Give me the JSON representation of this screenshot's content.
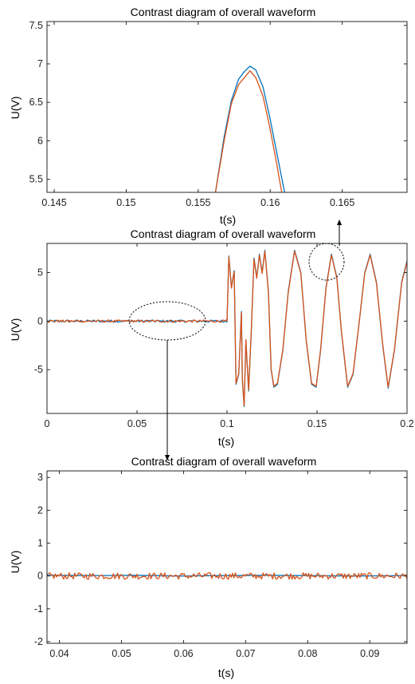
{
  "colors": {
    "series_a": "#0072BD",
    "series_b": "#D95319"
  },
  "chart_data": [
    {
      "type": "line",
      "title": "Contrast diagram of overall waveform",
      "xlabel": "t(s)",
      "ylabel": "U(V)",
      "xlim": [
        0.1445,
        0.1695
      ],
      "ylim": [
        5.33,
        7.55
      ],
      "xticks": [
        0.145,
        0.15,
        0.155,
        0.16,
        0.165
      ],
      "yticks": [
        5.5,
        6,
        6.5,
        7,
        7.5
      ],
      "grid": false,
      "series": [
        {
          "color": "#0072BD",
          "x": [
            0.1562,
            0.1568,
            0.1573,
            0.1578,
            0.1582,
            0.1586,
            0.159,
            0.1595,
            0.16,
            0.1605,
            0.161
          ],
          "y": [
            5.33,
            6.05,
            6.52,
            6.8,
            6.9,
            6.97,
            6.92,
            6.7,
            6.28,
            5.8,
            5.33
          ]
        },
        {
          "color": "#D95319",
          "x": [
            0.1562,
            0.1568,
            0.1573,
            0.1578,
            0.1582,
            0.1586,
            0.159,
            0.1595,
            0.16,
            0.1604,
            0.1608
          ],
          "y": [
            5.33,
            6.0,
            6.48,
            6.73,
            6.82,
            6.91,
            6.82,
            6.58,
            6.15,
            5.75,
            5.33
          ]
        }
      ]
    },
    {
      "type": "line",
      "title": "Contrast diagram of overall waveform",
      "xlabel": "t(s)",
      "ylabel": "U(V)",
      "xlim": [
        0,
        0.2
      ],
      "ylim": [
        -9.5,
        8
      ],
      "xticks": [
        0,
        0.05,
        0.1,
        0.15,
        0.2
      ],
      "yticks": [
        -5,
        0,
        5
      ],
      "grid": false,
      "series": [
        {
          "color": "#0072BD",
          "x": [
            0,
            0.1,
            0.101,
            0.1025,
            0.104,
            0.105,
            0.1065,
            0.108,
            0.1085,
            0.1095,
            0.1105,
            0.112,
            0.1135,
            0.115,
            0.1165,
            0.118,
            0.1195,
            0.121,
            0.123,
            0.1245,
            0.126,
            0.128,
            0.131,
            0.134,
            0.1375,
            0.141,
            0.144,
            0.147,
            0.1495,
            0.152,
            0.155,
            0.158,
            0.161,
            0.1635,
            0.167,
            0.17,
            0.1735,
            0.1765,
            0.1795,
            0.183,
            0.1865,
            0.1895,
            0.193,
            0.197,
            0.2
          ],
          "y": [
            0,
            0,
            6.7,
            3.5,
            5.2,
            -6.5,
            -5.5,
            1.0,
            -6.0,
            -8.8,
            -2.0,
            -7.2,
            -1.0,
            6.5,
            4.5,
            6.9,
            5.0,
            7.3,
            3.0,
            -5.0,
            -6.8,
            -6.5,
            -3.0,
            3.0,
            7.3,
            5.0,
            -2.0,
            -6.5,
            -6.8,
            -3.0,
            3.5,
            6.9,
            4.5,
            -1.0,
            -6.8,
            -5.5,
            0,
            5.0,
            6.9,
            4.0,
            -2.5,
            -6.9,
            -3.0,
            4.0,
            6.2
          ]
        },
        {
          "color": "#D95319",
          "x": [
            0,
            0.1,
            0.101,
            0.1025,
            0.104,
            0.105,
            0.1065,
            0.108,
            0.1085,
            0.1095,
            0.1105,
            0.112,
            0.1135,
            0.115,
            0.1165,
            0.118,
            0.1195,
            0.121,
            0.123,
            0.1245,
            0.126,
            0.128,
            0.131,
            0.134,
            0.1375,
            0.141,
            0.144,
            0.147,
            0.1495,
            0.152,
            0.155,
            0.158,
            0.161,
            0.1635,
            0.167,
            0.17,
            0.1735,
            0.1765,
            0.1795,
            0.183,
            0.1865,
            0.1895,
            0.193,
            0.197,
            0.2
          ],
          "y": [
            0,
            0,
            6.6,
            3.4,
            5.1,
            -6.4,
            -5.4,
            0.9,
            -5.9,
            -8.7,
            -1.9,
            -7.1,
            -0.9,
            6.4,
            4.4,
            6.8,
            4.9,
            7.2,
            2.9,
            -4.9,
            -6.7,
            -6.4,
            -2.9,
            2.9,
            7.2,
            4.9,
            -1.9,
            -6.4,
            -6.7,
            -2.9,
            3.4,
            6.8,
            4.4,
            -0.9,
            -6.7,
            -5.4,
            0,
            4.9,
            6.8,
            3.9,
            -2.4,
            -6.8,
            -2.9,
            3.9,
            6.1
          ]
        }
      ]
    },
    {
      "type": "line",
      "title": "Contrast diagram of overall waveform",
      "xlabel": "t(s)",
      "ylabel": "U(V)",
      "xlim": [
        0.038,
        0.096
      ],
      "ylim": [
        -2.05,
        3.2
      ],
      "xticks": [
        0.04,
        0.05,
        0.06,
        0.07,
        0.08,
        0.09
      ],
      "yticks": [
        -2,
        -1,
        0,
        1,
        2,
        3
      ],
      "grid": false,
      "series": [
        {
          "color": "#0072BD",
          "x": [
            0.038,
            0.045,
            0.052,
            0.059,
            0.066,
            0.073,
            0.08,
            0.087,
            0.096
          ],
          "y": [
            0.02,
            0.01,
            0.02,
            0.0,
            0.01,
            0.02,
            0.01,
            0.0,
            0.01
          ]
        },
        {
          "color": "#D95319",
          "x": [
            0.038,
            0.096
          ],
          "y": [
            0.0,
            0.0
          ],
          "noise_amplitude": 0.1
        }
      ]
    }
  ]
}
